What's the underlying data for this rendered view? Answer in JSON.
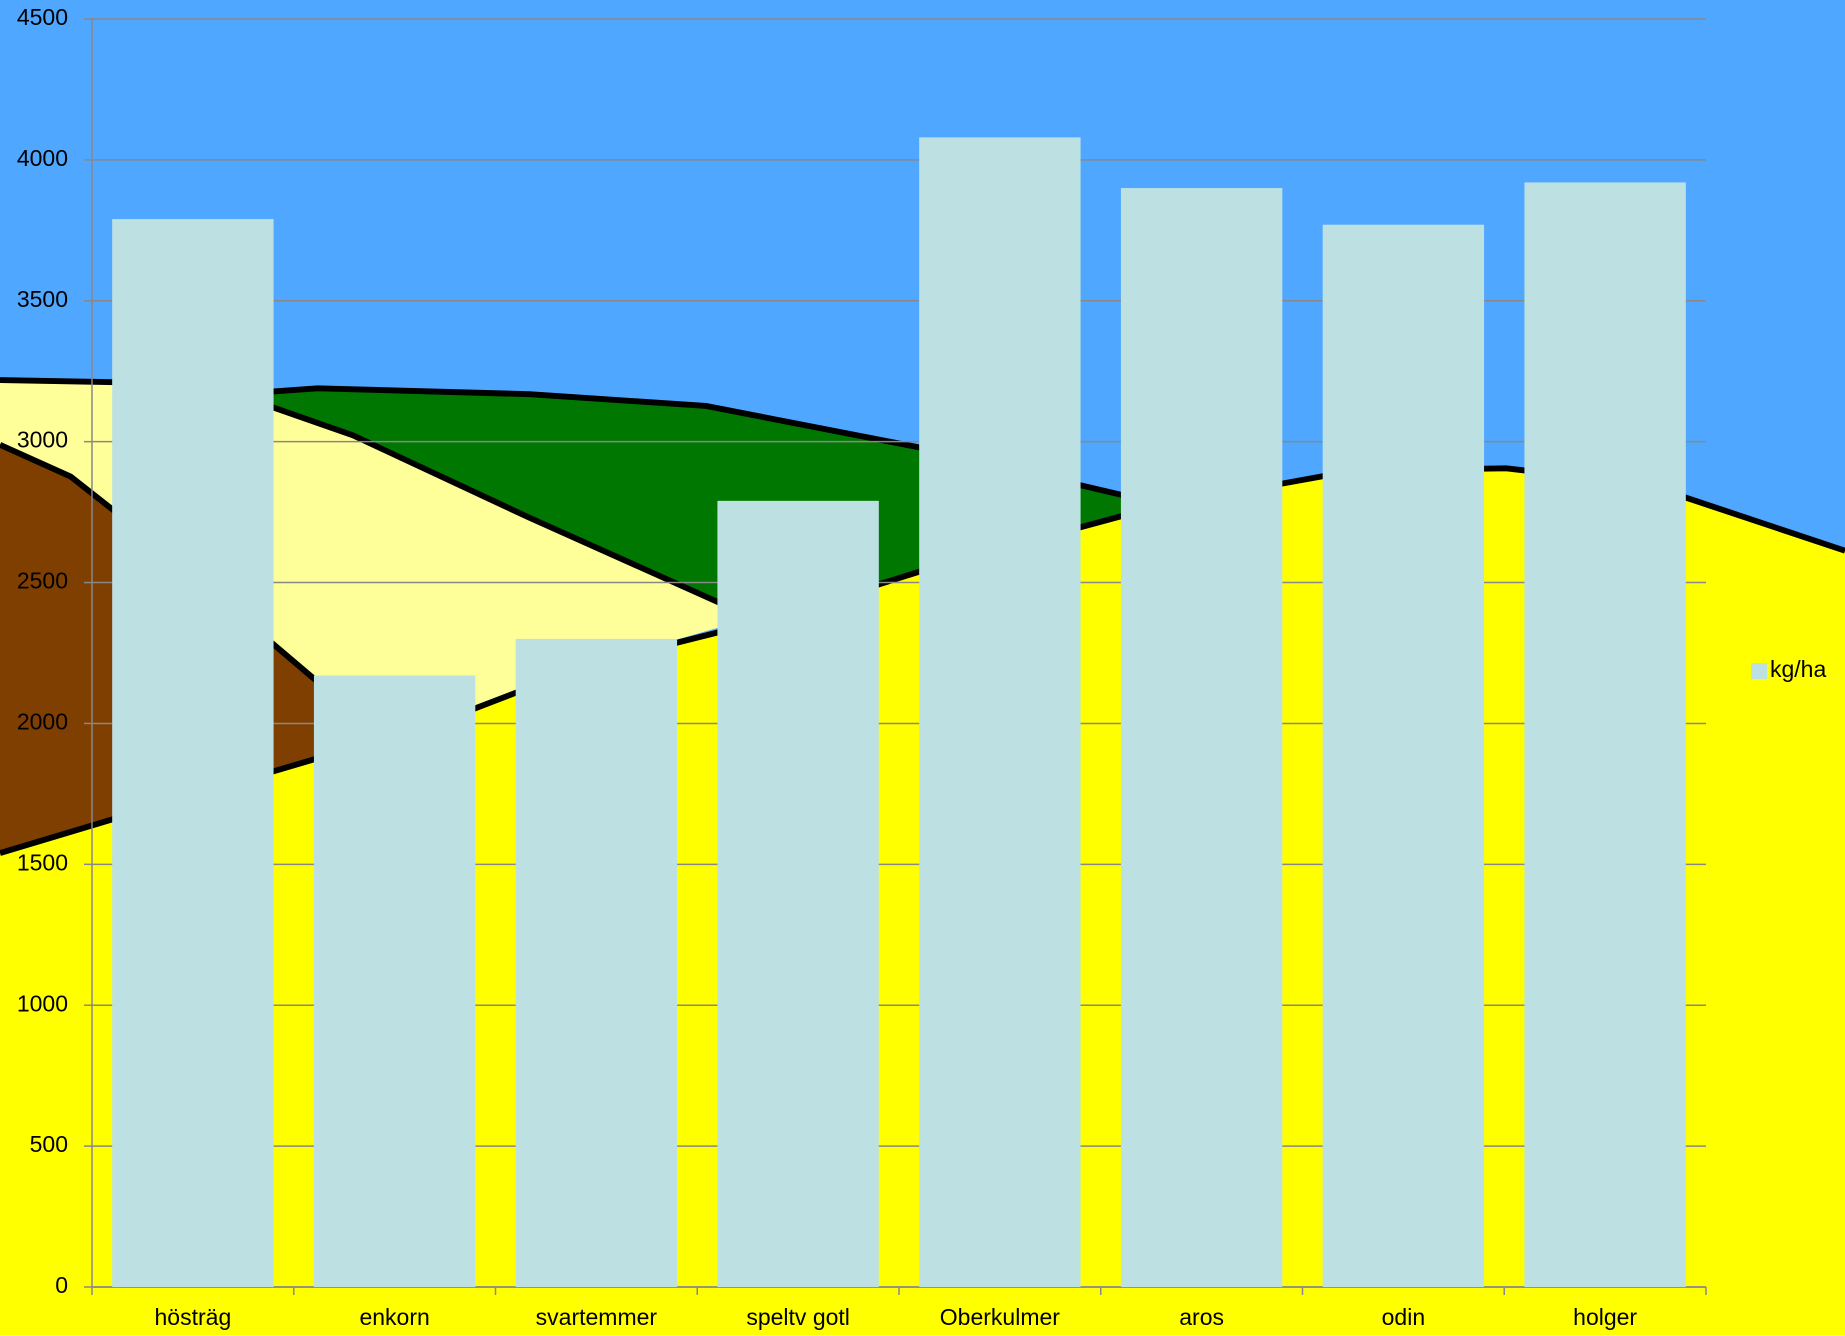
{
  "chart_data": {
    "type": "bar",
    "categories": [
      "hösträg",
      "enkorn",
      "svartemmer",
      "speltv gotl",
      "Oberkulmer",
      "aros",
      "odin",
      "holger"
    ],
    "series": [
      {
        "name": "kg/ha",
        "color": "#bde0e3",
        "values": [
          3790,
          2170,
          2300,
          2790,
          4080,
          3900,
          3770,
          3920
        ]
      }
    ],
    "ylim": [
      0,
      4500
    ],
    "yticks": [
      0,
      500,
      1000,
      1500,
      2000,
      2500,
      3000,
      3500,
      4000,
      4500
    ],
    "grid": true,
    "legend": "right"
  }
}
